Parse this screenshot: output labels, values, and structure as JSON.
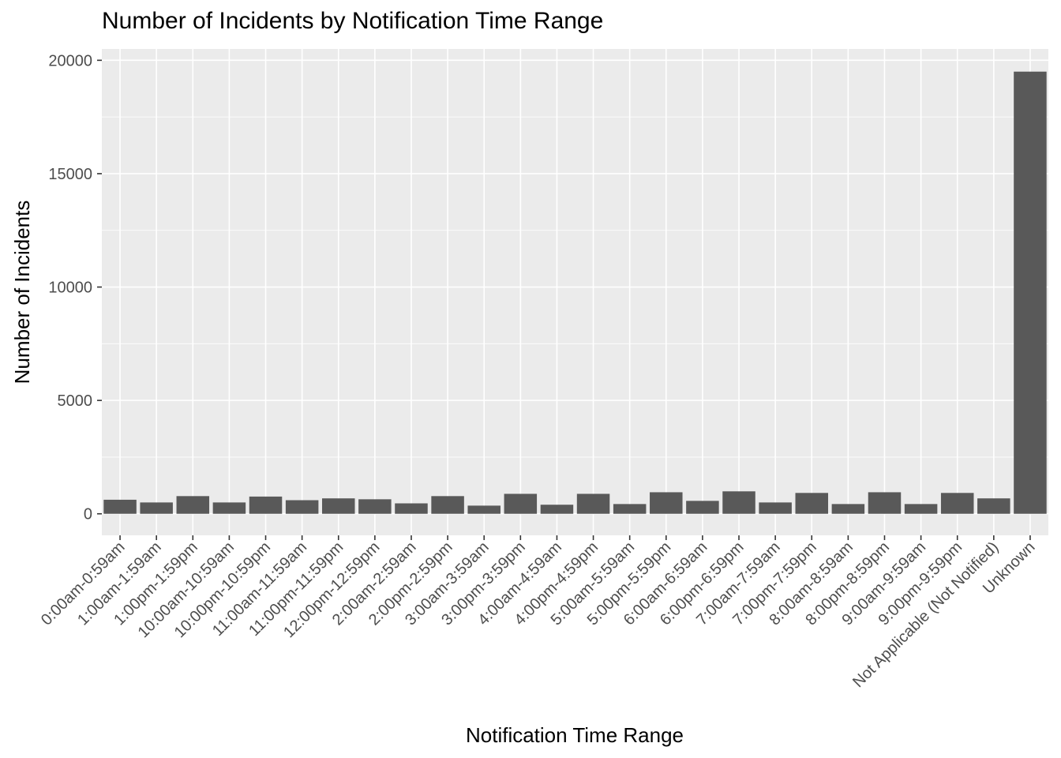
{
  "chart_data": {
    "type": "bar",
    "title": "Number of Incidents by Notification Time Range",
    "xlabel": "Notification Time Range",
    "ylabel": "Number of Incidents",
    "ylim": [
      -950,
      20500
    ],
    "yticks": [
      0,
      5000,
      10000,
      15000,
      20000
    ],
    "yticklabels": [
      "0",
      "5000",
      "10000",
      "15000",
      "20000"
    ],
    "grid": true,
    "colors": {
      "panel": "#ebebeb",
      "grid": "#ffffff",
      "bar": "#595959",
      "tick": "#333333",
      "ticklabel": "#4d4d4d"
    },
    "categories": [
      "0:00am-0:59am",
      "1:00am-1:59am",
      "1:00pm-1:59pm",
      "10:00am-10:59am",
      "10:00pm-10:59pm",
      "11:00am-11:59am",
      "11:00pm-11:59pm",
      "12:00pm-12:59pm",
      "2:00am-2:59am",
      "2:00pm-2:59pm",
      "3:00am-3:59am",
      "3:00pm-3:59pm",
      "4:00am-4:59am",
      "4:00pm-4:59pm",
      "5:00am-5:59am",
      "5:00pm-5:59pm",
      "6:00am-6:59am",
      "6:00pm-6:59pm",
      "7:00am-7:59am",
      "7:00pm-7:59pm",
      "8:00am-8:59am",
      "8:00pm-8:59pm",
      "9:00am-9:59am",
      "9:00pm-9:59pm",
      "Not Applicable (Not Notified)",
      "Unknown"
    ],
    "values": [
      620,
      500,
      780,
      500,
      760,
      600,
      680,
      640,
      460,
      780,
      360,
      880,
      400,
      880,
      430,
      950,
      570,
      990,
      500,
      920,
      430,
      950,
      430,
      920,
      680,
      19500
    ]
  }
}
